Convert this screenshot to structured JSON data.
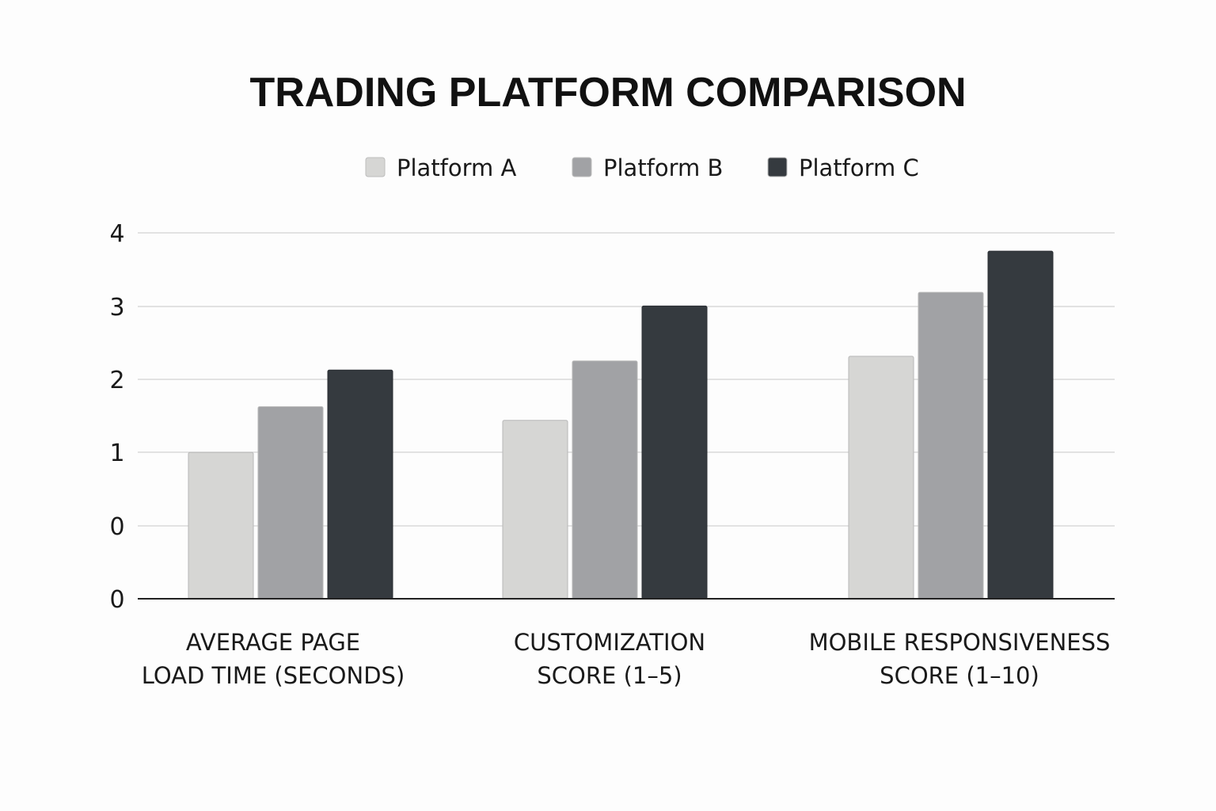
{
  "chart_data": {
    "type": "bar",
    "title": "TRADING PLATFORM COMPARISON",
    "categories": [
      [
        "AVERAGE PAGE",
        "LOAD TIME (SECONDS)"
      ],
      [
        "CUSTOMIZATION",
        "SCORE (1–5)"
      ],
      [
        "MOBILE RESPONSIVENESS",
        "SCORE (1–10)"
      ]
    ],
    "series": [
      {
        "name": "Platform A",
        "color": "#d6d6d4",
        "values": [
          1.6,
          1.95,
          2.65
        ]
      },
      {
        "name": "Platform B",
        "color": "#a1a2a5",
        "values": [
          2.1,
          2.6,
          3.35
        ]
      },
      {
        "name": "Platform C",
        "color": "#353a3f",
        "values": [
          2.5,
          3.2,
          3.8
        ]
      }
    ],
    "y_tick_labels": [
      "0",
      "0",
      "1",
      "2",
      "3",
      "4"
    ],
    "ylim": [
      0,
      4
    ],
    "grid": true,
    "legend_position": "top-center"
  }
}
